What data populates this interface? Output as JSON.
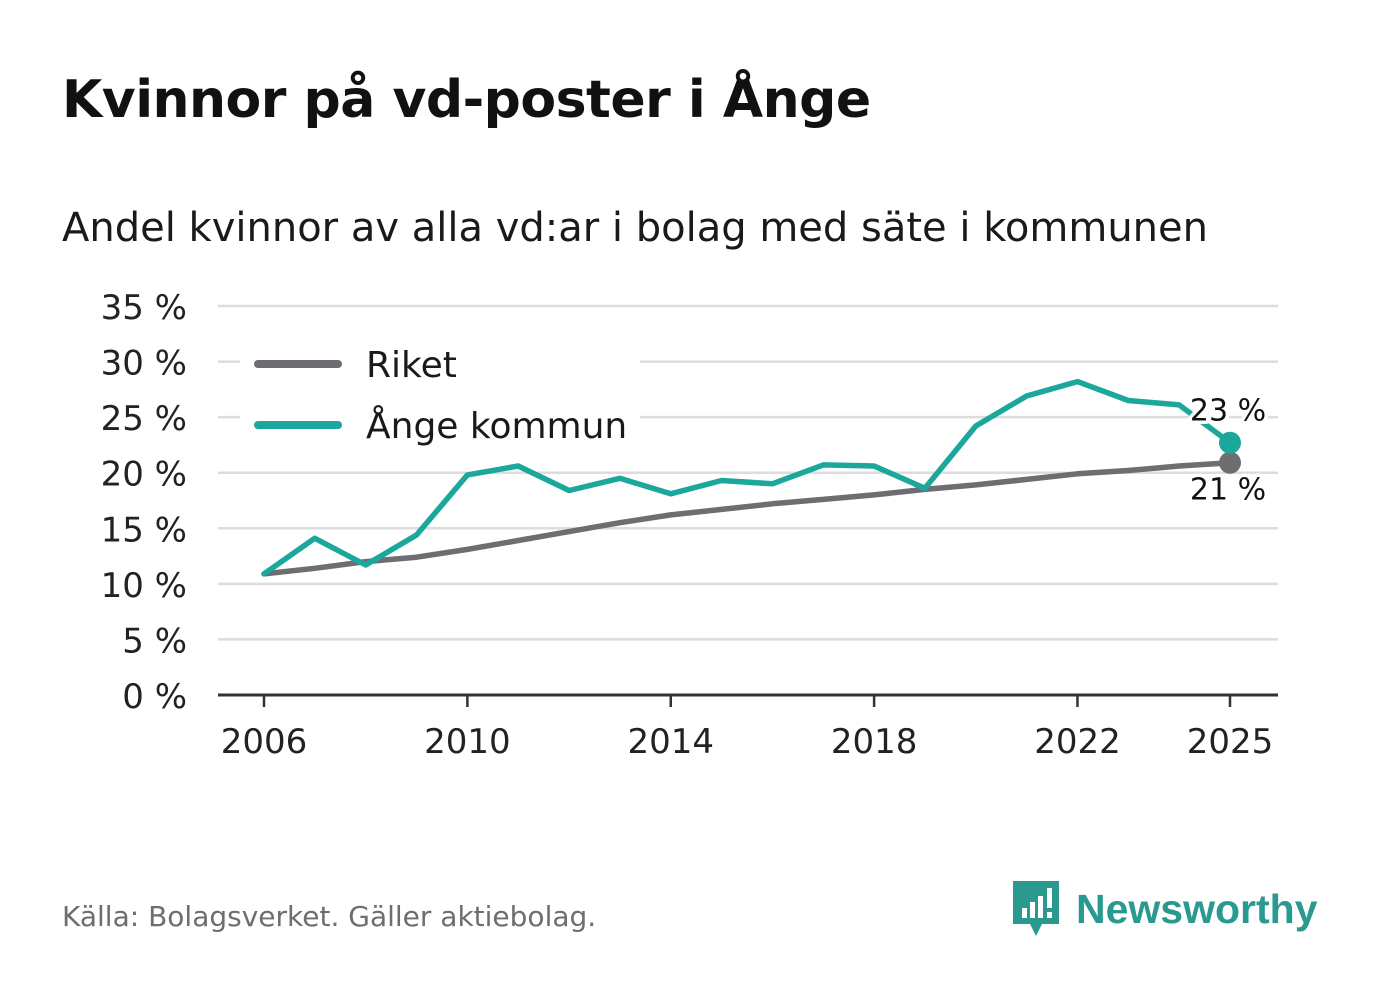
{
  "title": "Kvinnor på vd-poster i Ånge",
  "subtitle": "Andel kvinnor av alla vd:ar i bolag med säte i kommunen",
  "source": "Källa: Bolagsverket. Gäller aktiebolag.",
  "brand": {
    "name": "Newsworthy",
    "icon": "newsworthy-logo-icon",
    "color": "#2a9990"
  },
  "colors": {
    "riket": "#6d6d72",
    "ange": "#1ba79c",
    "grid": "#dddddd",
    "axis": "#333333"
  },
  "chart_data": {
    "type": "line",
    "title": "Kvinnor på vd-poster i Ånge",
    "subtitle": "Andel kvinnor av alla vd:ar i bolag med säte i kommunen",
    "xlabel": "",
    "ylabel": "",
    "ylim": [
      0,
      35
    ],
    "yticks": [
      0,
      5,
      10,
      15,
      20,
      25,
      30,
      35
    ],
    "ytick_labels": [
      "0 %",
      "5 %",
      "10 %",
      "15 %",
      "20 %",
      "25 %",
      "30 %",
      "35 %"
    ],
    "xlim": [
      2005,
      2026
    ],
    "xticks": [
      2006,
      2010,
      2014,
      2018,
      2022,
      2025
    ],
    "xtick_labels": [
      "2006",
      "2010",
      "2014",
      "2018",
      "2022",
      "2025"
    ],
    "x": [
      2006,
      2007,
      2008,
      2009,
      2010,
      2011,
      2012,
      2013,
      2014,
      2015,
      2016,
      2017,
      2018,
      2019,
      2020,
      2021,
      2022,
      2023,
      2024,
      2025
    ],
    "legend_position": "top-left",
    "grid": true,
    "series": [
      {
        "name": "Riket",
        "key": "riket",
        "values": [
          10.9,
          11.4,
          12.0,
          12.4,
          13.1,
          13.9,
          14.7,
          15.5,
          16.2,
          16.7,
          17.2,
          17.6,
          18.0,
          18.5,
          18.9,
          19.4,
          19.9,
          20.2,
          20.6,
          20.9
        ],
        "end_label": "21 %"
      },
      {
        "name": "Ånge kommun",
        "key": "ange",
        "values": [
          10.9,
          14.1,
          11.7,
          14.4,
          19.8,
          20.6,
          18.4,
          19.5,
          18.1,
          19.3,
          19.0,
          20.7,
          20.6,
          18.6,
          24.2,
          26.9,
          28.2,
          26.5,
          26.1,
          22.7
        ],
        "end_label": "23 %"
      }
    ]
  }
}
